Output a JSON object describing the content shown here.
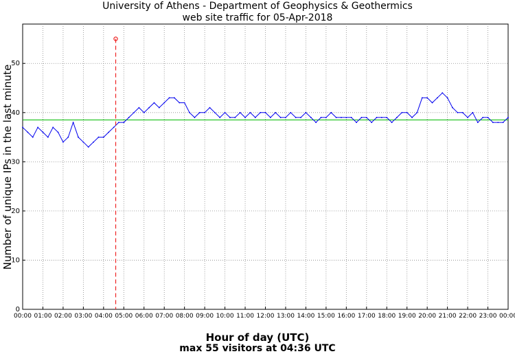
{
  "chart_data": {
    "type": "line",
    "title": "University of Athens - Department of Geophysics & Geothermics",
    "subtitle": "web site traffic for 05-Apr-2018",
    "xlabel": "Hour of day (UTC)",
    "xlabel_sub": "max 55 visitors at 04:36 UTC",
    "ylabel": "Number of unique IPs in the last minute",
    "xlim": [
      0,
      24
    ],
    "ylim": [
      0,
      58
    ],
    "grid": true,
    "x_ticks": [
      "00:00",
      "01:00",
      "02:00",
      "03:00",
      "04:00",
      "05:00",
      "06:00",
      "07:00",
      "08:00",
      "09:00",
      "10:00",
      "11:00",
      "12:00",
      "13:00",
      "14:00",
      "15:00",
      "16:00",
      "17:00",
      "18:00",
      "19:00",
      "20:00",
      "21:00",
      "22:00",
      "23:00",
      "00:00"
    ],
    "y_ticks": [
      0,
      10,
      20,
      30,
      40,
      50
    ],
    "mean_line": {
      "y": 38.5,
      "color": "#00bb00"
    },
    "max_marker": {
      "x": 4.6,
      "y": 55,
      "color": "#ee2222"
    },
    "series": [
      {
        "color": "#0000ee",
        "x": [
          0,
          0.25,
          0.5,
          0.75,
          1,
          1.25,
          1.5,
          1.75,
          2,
          2.25,
          2.5,
          2.75,
          3,
          3.25,
          3.5,
          3.75,
          4,
          4.25,
          4.5,
          4.75,
          5,
          5.25,
          5.5,
          5.75,
          6,
          6.25,
          6.5,
          6.75,
          7,
          7.25,
          7.5,
          7.75,
          8,
          8.25,
          8.5,
          8.75,
          9,
          9.25,
          9.5,
          9.75,
          10,
          10.25,
          10.5,
          10.75,
          11,
          11.25,
          11.5,
          11.75,
          12,
          12.25,
          12.5,
          12.75,
          13,
          13.25,
          13.5,
          13.75,
          14,
          14.25,
          14.5,
          14.75,
          15,
          15.25,
          15.5,
          15.75,
          16,
          16.25,
          16.5,
          16.75,
          17,
          17.25,
          17.5,
          17.75,
          18,
          18.25,
          18.5,
          18.75,
          19,
          19.25,
          19.5,
          19.75,
          20,
          20.25,
          20.5,
          20.75,
          21,
          21.25,
          21.5,
          21.75,
          22,
          22.25,
          22.5,
          22.75,
          23,
          23.25,
          23.5,
          23.75,
          24
        ],
        "y": [
          37,
          36,
          35,
          37,
          36,
          35,
          37,
          36,
          34,
          35,
          38,
          35,
          34,
          33,
          34,
          35,
          35,
          36,
          37,
          38,
          38,
          39,
          40,
          41,
          40,
          41,
          42,
          41,
          42,
          43,
          43,
          42,
          42,
          40,
          39,
          40,
          40,
          41,
          40,
          39,
          40,
          39,
          39,
          40,
          39,
          40,
          39,
          40,
          40,
          39,
          40,
          39,
          39,
          40,
          39,
          39,
          40,
          39,
          38,
          39,
          39,
          40,
          39,
          39,
          39,
          39,
          38,
          39,
          39,
          38,
          39,
          39,
          39,
          38,
          39,
          40,
          40,
          39,
          40,
          43,
          43,
          42,
          43,
          44,
          43,
          41,
          40,
          40,
          39,
          40,
          38,
          39,
          39,
          38,
          38,
          38,
          39
        ]
      }
    ]
  }
}
